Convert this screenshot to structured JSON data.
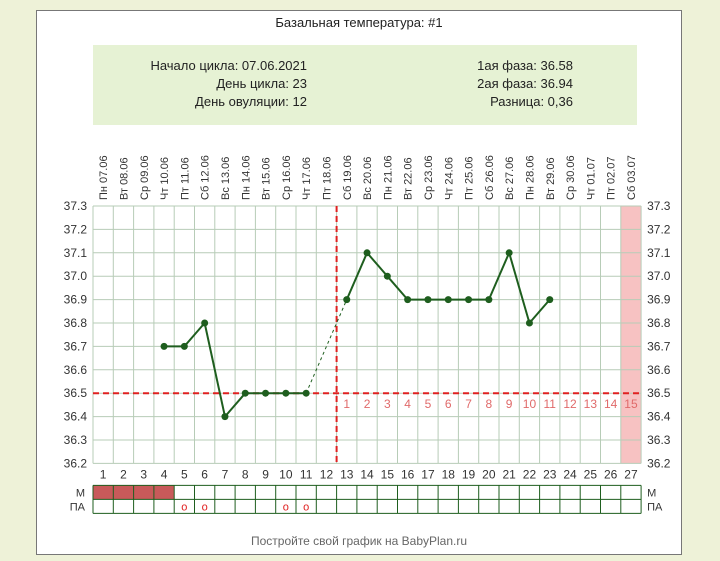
{
  "title": "Базальная температура: #1",
  "info": {
    "cycle_start": "Начало цикла: 07.06.2021",
    "cycle_day": "День цикла: 23",
    "ovulation_day": "День овуляции: 12",
    "phase1": "1ая фаза: 36.58",
    "phase2": "2ая фаза: 36.94",
    "difference": "Разница: 0,36"
  },
  "footer": "Постройте свой график на BabyPlan.ru",
  "colors": {
    "line": "#1e5e1e",
    "grid": "#b7ccb7",
    "threshold": "#e02020",
    "phase_number": "#e06a6a",
    "menstruation": "#c85a5a",
    "highlight_day": "#f7c2c2"
  },
  "chart_data": {
    "type": "line",
    "title": "Базальная температура: #1",
    "dates": [
      "Пн 07.06",
      "Вт 08.06",
      "Ср 09.06",
      "Чт 10.06",
      "Пт 11.06",
      "Сб 12.06",
      "Вс 13.06",
      "Пн 14.06",
      "Вт 15.06",
      "Ср 16.06",
      "Чт 17.06",
      "Пт 18.06",
      "Сб 19.06",
      "Вс 20.06",
      "Пн 21.06",
      "Вт 22.06",
      "Ср 23.06",
      "Чт 24.06",
      "Пт 25.06",
      "Сб 26.06",
      "Вс 27.06",
      "Пн 28.06",
      "Вт 29.06",
      "Ср 30.06",
      "Чт 01.07",
      "Пт 02.07",
      "Сб 03.07"
    ],
    "days": [
      "1",
      "2",
      "3",
      "4",
      "5",
      "6",
      "7",
      "8",
      "9",
      "10",
      "11",
      "12",
      "13",
      "14",
      "15",
      "16",
      "17",
      "18",
      "19",
      "20",
      "21",
      "22",
      "23",
      "24",
      "25",
      "26",
      "27"
    ],
    "y_ticks": [
      "37.3",
      "37.2",
      "37.1",
      "37.0",
      "36.9",
      "36.8",
      "36.7",
      "36.6",
      "36.5",
      "36.4",
      "36.3",
      "36.2"
    ],
    "ylim": [
      36.2,
      37.3
    ],
    "series": [
      {
        "values": [
          null,
          null,
          null,
          36.7,
          36.7,
          36.8,
          36.4,
          36.5,
          36.5,
          36.5,
          36.5,
          null,
          36.9,
          37.1,
          37.0,
          36.9,
          36.9,
          36.9,
          36.9,
          36.9,
          37.1,
          36.8,
          36.9,
          null,
          null,
          null,
          null
        ]
      }
    ],
    "threshold_temperature": 36.5,
    "ovulation_day": 12,
    "highlight_day": 27,
    "phase2_day_numbers": [
      "1",
      "2",
      "3",
      "4",
      "5",
      "6",
      "7",
      "8",
      "9",
      "10",
      "11",
      "12",
      "13",
      "14",
      "15"
    ],
    "menstruation_days": [
      1,
      2,
      3,
      4
    ],
    "pa_marked_days": [
      5,
      6,
      10,
      11
    ],
    "pa_marker": "o",
    "row_labels": {
      "m": "М",
      "pa": "ПА"
    }
  }
}
